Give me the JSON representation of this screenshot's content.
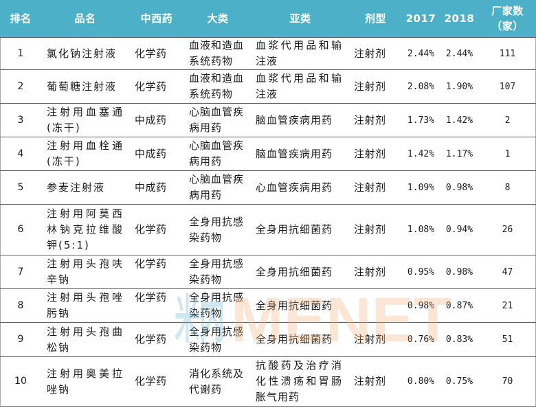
{
  "colors": {
    "header_background": "#4bb0c8",
    "header_text": "#ffffff",
    "row_divider": "#5c5c5c"
  },
  "chart_data": {
    "type": "table",
    "columns": [
      "排名",
      "品名",
      "中西药",
      "大类",
      "亚类",
      "剂型",
      "2017",
      "2018",
      "厂家数（家）"
    ],
    "rows": [
      [
        "1",
        "氯化钠注射液",
        "化学药",
        "血液和造血系统药物",
        "血浆代用品和输注液",
        "注射剂",
        "2.44%",
        "2.44%",
        "111"
      ],
      [
        "2",
        "葡萄糖注射液",
        "化学药",
        "血液和造血系统药物",
        "血浆代用品和输注液",
        "注射剂",
        "2.08%",
        "1.90%",
        "107"
      ],
      [
        "3",
        "注射用血塞通(冻干)",
        "中成药",
        "心脑血管疾病用药",
        "脑血管疾病用药",
        "注射剂",
        "1.73%",
        "1.42%",
        "2"
      ],
      [
        "4",
        "注射用血栓通(冻干)",
        "中成药",
        "心脑血管疾病用药",
        "脑血管疾病用药",
        "注射剂",
        "1.42%",
        "1.17%",
        "1"
      ],
      [
        "5",
        "参麦注射液",
        "中成药",
        "心脑血管疾病用药",
        "心血管疾病用药",
        "注射剂",
        "1.09%",
        "0.98%",
        "8"
      ],
      [
        "6",
        "注射用阿莫西林钠克拉维酸钾(5:1)",
        "化学药",
        "全身用抗感染药物",
        "全身用抗细菌药",
        "注射剂",
        "1.08%",
        "0.94%",
        "26"
      ],
      [
        "7",
        "注射用头孢呋辛钠",
        "化学药",
        "全身用抗感染药物",
        "全身用抗细菌药",
        "注射剂",
        "0.95%",
        "0.98%",
        "47"
      ],
      [
        "8",
        "注射用头孢唑肟钠",
        "化学药",
        "全身用抗感染药物",
        "全身用抗细菌药",
        "",
        "0.98%",
        "0.87%",
        "21"
      ],
      [
        "9",
        "注射用头孢曲松钠",
        "化学药",
        "全身用抗感染药物",
        "全身用抗细菌药",
        "注射剂",
        "0.76%",
        "0.83%",
        "51"
      ],
      [
        "10",
        "注射用奥美拉唑钠",
        "化学药",
        "消化系统及代谢药",
        "抗酸药及治疗消化性溃疡和胃肠胀气用药",
        "注射剂",
        "0.80%",
        "0.75%",
        "70"
      ]
    ]
  },
  "watermark": {
    "logo_cn": "米内",
    "logo_en": "MENET"
  }
}
